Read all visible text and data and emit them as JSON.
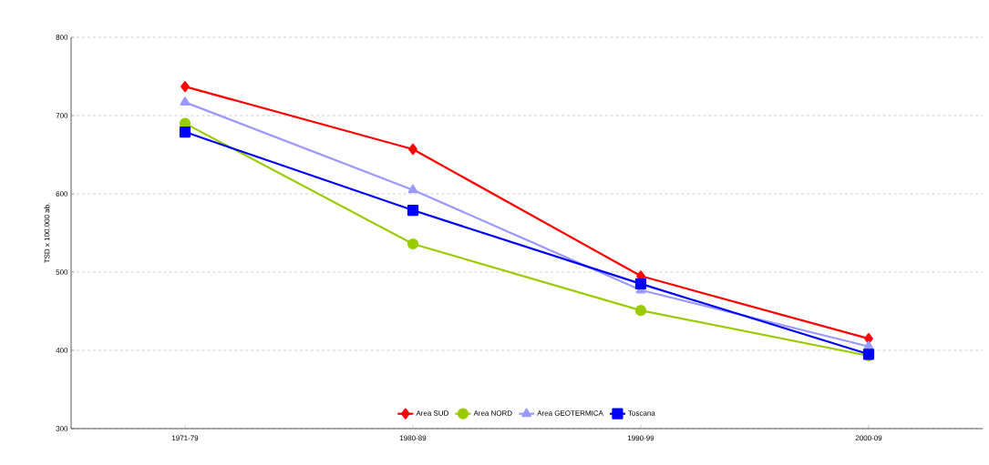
{
  "chart_data": {
    "type": "line",
    "ylabel": "TSD x 100.000 ab.",
    "categories": [
      "1971-79",
      "1980-89",
      "1990-99",
      "2000-09"
    ],
    "series": [
      {
        "name": "Area SUD",
        "color": "#ff0000",
        "marker": "diamond",
        "values": [
          737,
          657,
          495,
          415
        ]
      },
      {
        "name": "Area NORD",
        "color": "#99cc00",
        "marker": "circle",
        "values": [
          690,
          536,
          451,
          393
        ]
      },
      {
        "name": "Area GEOTERMICA",
        "color": "#9999ff",
        "marker": "triangle",
        "values": [
          717,
          605,
          477,
          405
        ]
      },
      {
        "name": "Toscana",
        "color": "#0000ff",
        "marker": "square",
        "values": [
          679,
          579,
          485,
          395
        ]
      }
    ],
    "ylim": [
      300,
      800
    ],
    "yticks": [
      300,
      400,
      500,
      600,
      700,
      800
    ],
    "grid": "y",
    "legend": "bottom",
    "line_style": "solid"
  }
}
